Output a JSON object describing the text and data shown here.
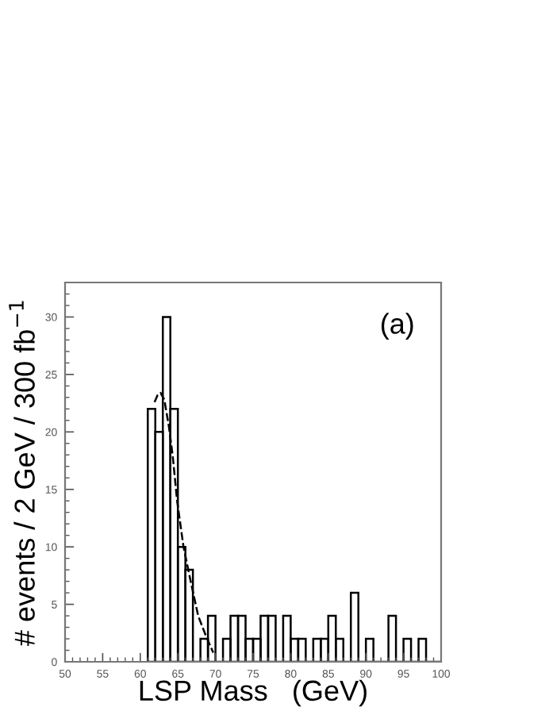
{
  "chart_data": {
    "type": "histogram",
    "xlabel": "LSP Mass   (GeV)",
    "ylabel": "# events / 2 GeV / 300 fb$^{−1}$",
    "annotations": [
      "(a)"
    ],
    "bins": [
      61,
      62,
      63,
      64,
      65,
      66,
      67,
      68,
      69,
      70,
      71,
      72,
      73,
      74,
      75,
      76,
      77,
      78,
      79,
      80,
      81,
      82,
      83,
      84,
      85,
      86,
      87,
      88,
      89,
      90,
      91,
      92,
      93,
      94,
      95,
      96,
      97,
      98,
      99,
      100
    ],
    "values": [
      22,
      20,
      30,
      22,
      10,
      8,
      0,
      2,
      4,
      0,
      2,
      4,
      4,
      2,
      2,
      4,
      4,
      0,
      4,
      2,
      2,
      0,
      2,
      2,
      4,
      2,
      0,
      6,
      0,
      2,
      0,
      0,
      4,
      0,
      2,
      0,
      2,
      0,
      0
    ],
    "color": "#000000",
    "series": [
      {
        "type": "line",
        "color": "#000000",
        "line_style": "dashed",
        "x": [
          61.9,
          62.3,
          62.7,
          63.2,
          63.8,
          64.3,
          64.9,
          65.75,
          66.7,
          67.7,
          68.7,
          69.7
        ],
        "values": [
          22.6,
          23.2,
          23.4,
          22.8,
          20.5,
          18,
          14,
          10,
          7,
          4,
          2.3,
          0.8
        ]
      }
    ],
    "xlim": [
      50,
      100
    ],
    "ylim": [
      0,
      33
    ],
    "xticks": [
      50,
      55,
      60,
      65,
      70,
      75,
      80,
      85,
      90,
      95,
      100
    ],
    "yticks": [
      0,
      5,
      10,
      15,
      20,
      25,
      30
    ]
  }
}
